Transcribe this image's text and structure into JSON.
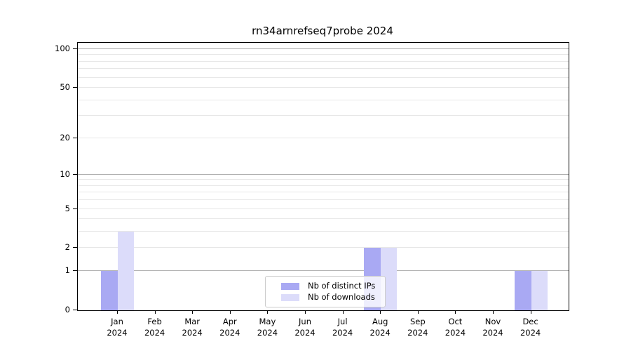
{
  "chart_data": {
    "type": "bar",
    "title": "rn34arnrefseq7probe 2024",
    "categories": [
      "Jan",
      "Feb",
      "Mar",
      "Apr",
      "May",
      "Jun",
      "Jul",
      "Aug",
      "Sep",
      "Oct",
      "Nov",
      "Dec"
    ],
    "year": "2024",
    "series": [
      {
        "name": "Nb of distinct IPs",
        "color": "#a9a9f3",
        "values": [
          1,
          0,
          0,
          0,
          0,
          0,
          0,
          2,
          0,
          0,
          0,
          1
        ]
      },
      {
        "name": "Nb of downloads",
        "color": "#dcdcfa",
        "values": [
          3,
          0,
          0,
          0,
          0,
          0,
          0,
          2,
          0,
          0,
          0,
          1
        ]
      }
    ],
    "y_ticks": [
      0,
      1,
      2,
      5,
      10,
      20,
      50,
      100
    ],
    "y_scale": "log10(1+x)",
    "ylim": [
      0,
      113
    ],
    "grid": {
      "major": [
        1,
        10,
        100
      ],
      "minor": [
        2,
        3,
        4,
        5,
        6,
        7,
        8,
        9,
        20,
        30,
        40,
        50,
        60,
        70,
        80,
        90
      ]
    },
    "legend": {
      "position": "lower center"
    },
    "colors": {
      "grid_major": "#b0b0b0",
      "grid_minor": "#e7e7e7",
      "axis": "#000000",
      "legend_border": "#cccccc",
      "background": "#ffffff"
    }
  }
}
